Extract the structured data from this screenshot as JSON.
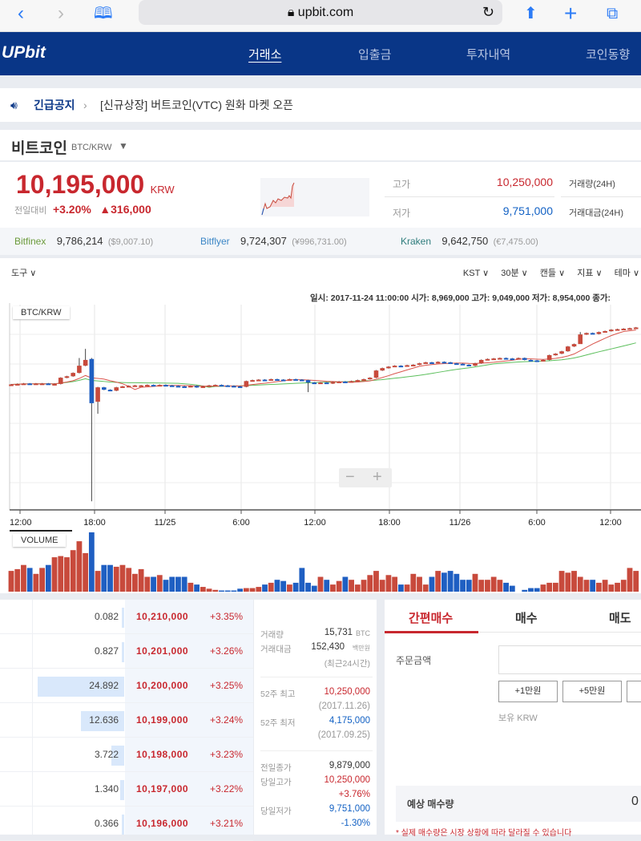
{
  "browser": {
    "url": "upbit.com"
  },
  "nav": {
    "logo": "UPbit",
    "items": [
      "거래소",
      "입출금",
      "투자내역",
      "코인동향"
    ],
    "active": 0
  },
  "notice": {
    "label": "긴급공지",
    "text": "[신규상장] 버트코인(VTC) 원화 마켓 오픈"
  },
  "coin": {
    "name": "비트코인",
    "pair": "BTC/KRW"
  },
  "price": {
    "current": "10,195,000",
    "unit": "KRW",
    "change_label": "전일대비",
    "change_pct": "+3.20%",
    "change_amt": "▲316,000",
    "high_label": "고가",
    "high": "10,250,000",
    "low_label": "저가",
    "low": "9,751,000",
    "vol_label": "거래량(24H)",
    "amt_label": "거래대금(24H)"
  },
  "exchanges": [
    {
      "name": "Bitfinex",
      "price": "9,786,214",
      "local": "($9,007.10)",
      "color": "#6a9a3a"
    },
    {
      "name": "Bitflyer",
      "price": "9,724,307",
      "local": "(¥996,731.00)",
      "color": "#3b86c6"
    },
    {
      "name": "Kraken",
      "price": "9,642,750",
      "local": "(€7,475.00)",
      "color": "#2e7c7c"
    }
  ],
  "toolbar": {
    "tools": "도구",
    "options": [
      "KST",
      "30분",
      "캔들",
      "지표",
      "테마"
    ]
  },
  "chart_info": "일시: 2017-11-24 11:00:00 시가: 8,969,000 고가: 9,049,000 저가: 8,954,000 종가:",
  "chart_data": {
    "type": "candlestick",
    "title": "BTC/KRW",
    "volume_label": "VOLUME",
    "x_ticks": [
      "12:00",
      "18:00",
      "11/25",
      "6:00",
      "12:00",
      "18:00",
      "11/26",
      "6:00",
      "12:00"
    ],
    "interval": "30분",
    "ylim": [
      6400000,
      10670000
    ],
    "close": [
      9010000,
      9020000,
      9030000,
      9020000,
      9030000,
      9030000,
      9020000,
      9020000,
      9150000,
      9180000,
      9250000,
      9400000,
      9520000,
      8620000,
      8950000,
      8900000,
      8880000,
      8950000,
      8970000,
      8980000,
      8990000,
      8990000,
      9000000,
      8990000,
      9000000,
      8990000,
      8980000,
      8970000,
      8960000,
      8980000,
      8950000,
      8970000,
      8990000,
      9000000,
      8990000,
      8980000,
      8970000,
      8960000,
      9080000,
      9100000,
      9110000,
      9100000,
      9120000,
      9110000,
      9100000,
      9120000,
      9110000,
      9100000,
      9050000,
      9040000,
      9050000,
      9030000,
      9060000,
      9070000,
      9060000,
      9080000,
      9100000,
      9120000,
      9150000,
      9300000,
      9350000,
      9380000,
      9400000,
      9390000,
      9410000,
      9420000,
      9450000,
      9470000,
      9460000,
      9480000,
      9470000,
      9450000,
      9440000,
      9420000,
      9400000,
      9450000,
      9520000,
      9540000,
      9550000,
      9560000,
      9550000,
      9540000,
      9560000,
      9520000,
      9510000,
      9500000,
      9520000,
      9620000,
      9650000,
      9700000,
      9800000,
      9850000,
      10050000,
      10080000,
      10060000,
      10100000,
      10120000,
      10150000,
      10160000,
      10170000,
      10180000,
      10195000
    ],
    "special": [
      {
        "index": 11,
        "high": 9560000
      },
      {
        "index": 12,
        "high": 9750000
      },
      {
        "index": 13,
        "open": 9540000,
        "high": 9560000,
        "low": 6580000
      },
      {
        "index": 14,
        "open": 8650000,
        "low": 8400000
      },
      {
        "index": 48,
        "low": 8850000
      },
      {
        "index": 92,
        "high": 10100000,
        "low": 9880000
      }
    ],
    "volume": [
      35,
      38,
      45,
      40,
      30,
      40,
      45,
      58,
      60,
      58,
      70,
      85,
      65,
      100,
      35,
      45,
      45,
      42,
      45,
      40,
      30,
      38,
      25,
      25,
      28,
      20,
      25,
      25,
      25,
      15,
      12,
      8,
      5,
      3,
      2,
      2,
      2,
      5,
      6,
      6,
      8,
      12,
      15,
      20,
      18,
      12,
      15,
      40,
      15,
      10,
      25,
      20,
      12,
      18,
      25,
      20,
      12,
      20,
      28,
      35,
      20,
      28,
      25,
      12,
      12,
      30,
      25,
      12,
      25,
      35,
      32,
      35,
      30,
      20,
      20,
      30,
      20,
      20,
      25,
      20,
      15,
      10,
      0,
      3,
      6,
      6,
      12,
      15,
      15,
      35,
      32,
      35,
      25,
      20,
      20,
      15,
      20,
      12,
      15,
      20,
      40,
      35
    ],
    "up_color": "#c84a3c",
    "down_color": "#1f5fc2",
    "ma_short_color": "#d9554c",
    "ma_long_color": "#5cbf5c"
  },
  "orderbook": [
    {
      "qty": "0.082",
      "price": "10,210,000",
      "pct": "+3.35%",
      "depth": 0.3
    },
    {
      "qty": "0.827",
      "price": "10,201,000",
      "pct": "+3.26%",
      "depth": 3
    },
    {
      "qty": "24.892",
      "price": "10,200,000",
      "pct": "+3.25%",
      "depth": 100
    },
    {
      "qty": "12.636",
      "price": "10,199,000",
      "pct": "+3.24%",
      "depth": 50
    },
    {
      "qty": "3.722",
      "price": "10,198,000",
      "pct": "+3.23%",
      "depth": 15
    },
    {
      "qty": "1.340",
      "price": "10,197,000",
      "pct": "+3.22%",
      "depth": 5
    },
    {
      "qty": "0.366",
      "price": "10,196,000",
      "pct": "+3.21%",
      "depth": 1.5
    }
  ],
  "stats": {
    "vol_label": "거래량",
    "vol": "15,731",
    "vol_unit": "BTC",
    "amt_label": "거래대금",
    "amt": "152,430",
    "amt_unit": "백만원",
    "amt_note": "(최근24시간)",
    "w52_high_label": "52주 최고",
    "w52_high": "10,250,000",
    "w52_high_date": "(2017.11.26)",
    "w52_low_label": "52주 최저",
    "w52_low": "4,175,000",
    "w52_low_date": "(2017.09.25)",
    "prev_close_label": "전일종가",
    "prev_close": "9,879,000",
    "day_high_label": "당일고가",
    "day_high": "10,250,000",
    "day_high_pct": "+3.76%",
    "day_low_label": "당일저가",
    "day_low": "9,751,000",
    "day_low_pct": "-1.30%"
  },
  "order": {
    "tabs": [
      "간편매수",
      "매수",
      "매도"
    ],
    "amount_label": "주문금액",
    "amount_value": "",
    "quick": [
      "+1만원",
      "+5만원"
    ],
    "holding": "보유 KRW",
    "expected_label": "예상 매수량",
    "expected_value": "0",
    "warning": "* 실제 매수량은 시장 상황에 따라 달라질 수 있습니다"
  }
}
